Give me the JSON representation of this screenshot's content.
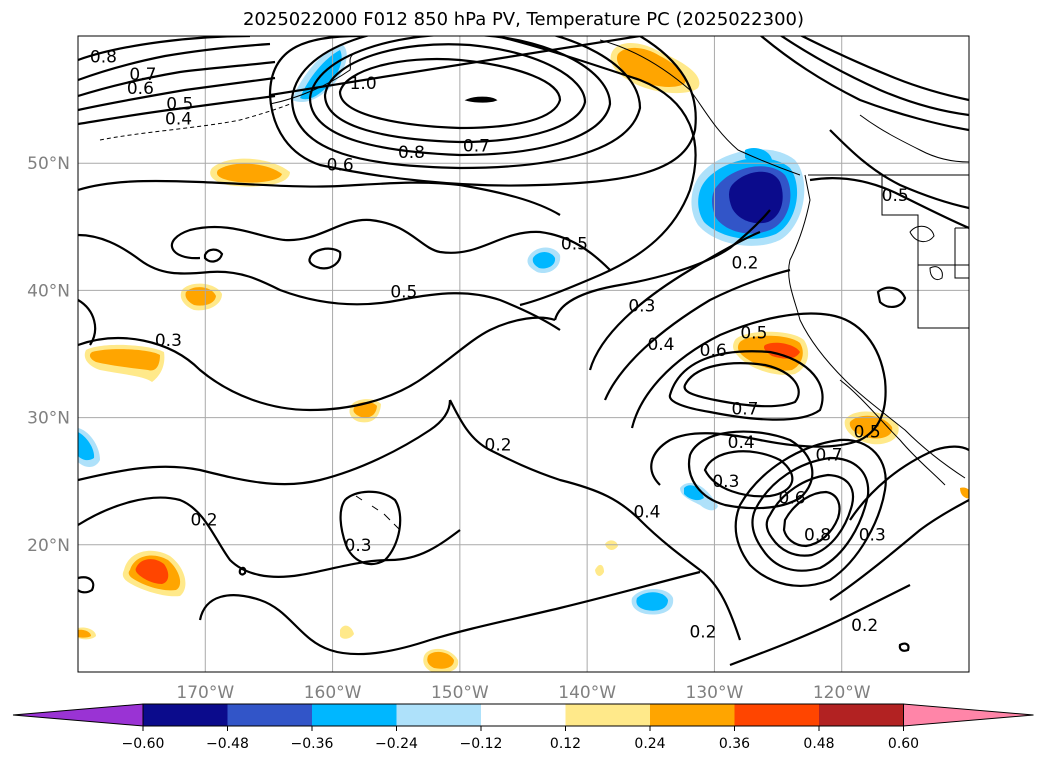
{
  "title": "2025022000 F012 850 hPa PV, Temperature PC (2025022300)",
  "map": {
    "lon_range": [
      -180,
      -110
    ],
    "lat_range": [
      10,
      60
    ],
    "lat_ticks": [
      {
        "value": 20,
        "label": "20°N"
      },
      {
        "value": 30,
        "label": "30°N"
      },
      {
        "value": 40,
        "label": "40°N"
      },
      {
        "value": 50,
        "label": "50°N"
      }
    ],
    "lon_ticks": [
      {
        "value": -170,
        "label": "170°W"
      },
      {
        "value": -160,
        "label": "160°W"
      },
      {
        "value": -150,
        "label": "150°W"
      },
      {
        "value": -140,
        "label": "140°W"
      },
      {
        "value": -130,
        "label": "130°W"
      },
      {
        "value": -120,
        "label": "120°W"
      }
    ],
    "grid": true,
    "contour_labels": [
      {
        "text": "0.8",
        "lon": -178.0,
        "lat": 58.4
      },
      {
        "text": "0.7",
        "lon": -174.9,
        "lat": 57.0
      },
      {
        "text": "0.6",
        "lon": -175.1,
        "lat": 55.9
      },
      {
        "text": "0.5",
        "lon": -172.0,
        "lat": 54.7
      },
      {
        "text": "0.4",
        "lon": -172.1,
        "lat": 53.5
      },
      {
        "text": "1.0",
        "lon": -157.6,
        "lat": 56.3
      },
      {
        "text": "0.6",
        "lon": -159.4,
        "lat": 49.9
      },
      {
        "text": "0.8",
        "lon": -153.8,
        "lat": 50.9
      },
      {
        "text": "0.7",
        "lon": -148.7,
        "lat": 51.4
      },
      {
        "text": "0.5",
        "lon": -141.0,
        "lat": 43.7
      },
      {
        "text": "0.2",
        "lon": -127.6,
        "lat": 42.2
      },
      {
        "text": "0.5",
        "lon": -115.8,
        "lat": 47.5
      },
      {
        "text": "0.3",
        "lon": -135.7,
        "lat": 38.8
      },
      {
        "text": "0.5",
        "lon": -154.4,
        "lat": 39.9
      },
      {
        "text": "0.4",
        "lon": -134.2,
        "lat": 35.8
      },
      {
        "text": "0.5",
        "lon": -126.9,
        "lat": 36.7
      },
      {
        "text": "0.6",
        "lon": -130.1,
        "lat": 35.3
      },
      {
        "text": "0.3",
        "lon": -172.9,
        "lat": 36.1
      },
      {
        "text": "0.7",
        "lon": -127.6,
        "lat": 30.7
      },
      {
        "text": "0.4",
        "lon": -127.9,
        "lat": 28.1
      },
      {
        "text": "0.5",
        "lon": -118.0,
        "lat": 28.9
      },
      {
        "text": "0.7",
        "lon": -121.0,
        "lat": 27.1
      },
      {
        "text": "0.2",
        "lon": -147.0,
        "lat": 27.9
      },
      {
        "text": "0.3",
        "lon": -129.1,
        "lat": 25.0
      },
      {
        "text": "0.6",
        "lon": -123.9,
        "lat": 23.7
      },
      {
        "text": "0.4",
        "lon": -135.3,
        "lat": 22.6
      },
      {
        "text": "0.8",
        "lon": -121.9,
        "lat": 20.8
      },
      {
        "text": "0.3",
        "lon": -117.6,
        "lat": 20.8
      },
      {
        "text": "0.2",
        "lon": -170.1,
        "lat": 22.0
      },
      {
        "text": "0.3",
        "lon": -158.0,
        "lat": 20.0
      },
      {
        "text": "0.2",
        "lon": -118.2,
        "lat": 13.7
      },
      {
        "text": "0.2",
        "lon": -130.9,
        "lat": 13.2
      }
    ]
  },
  "colorbar": {
    "ticks": [
      "−0.60",
      "−0.48",
      "−0.36",
      "−0.24",
      "−0.12",
      "0.12",
      "0.24",
      "0.36",
      "0.48",
      "0.60"
    ],
    "colors": [
      "#9a33d4",
      "#0b0b8c",
      "#3255c8",
      "#00b7ff",
      "#aee1fa",
      "#ffffff",
      "#ffe98a",
      "#ffa500",
      "#ff4500",
      "#b22222",
      "#ff85a8"
    ]
  },
  "shading_colors": {
    "dark_blue": "#0b0b8c",
    "mid_blue": "#3255c8",
    "blue": "#00b7ff",
    "light_blue": "#aee1fa",
    "yellow": "#ffe98a",
    "orange": "#ffa500",
    "red": "#ff4500"
  }
}
